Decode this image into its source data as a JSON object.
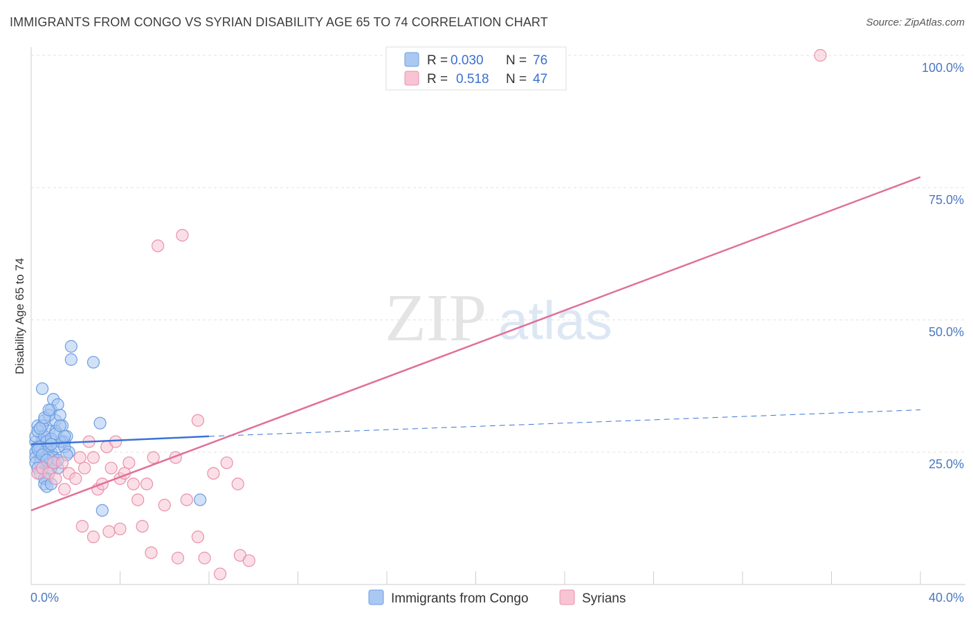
{
  "header": {
    "title": "IMMIGRANTS FROM CONGO VS SYRIAN DISABILITY AGE 65 TO 74 CORRELATION CHART",
    "source": "Source: ZipAtlas.com"
  },
  "watermark": {
    "zip": "ZIP",
    "atlas": "atlas"
  },
  "legend": {
    "r_label": "R =",
    "n_label": "N =",
    "rows": [
      {
        "r": "0.030",
        "n": "76",
        "fill": "#aac8f2",
        "stroke": "#6d9de0"
      },
      {
        "r": "0.518",
        "n": "47",
        "fill": "#f8c4d4",
        "stroke": "#e890ac"
      }
    ]
  },
  "chart_data": {
    "type": "scatter",
    "title": "IMMIGRANTS FROM CONGO VS SYRIAN DISABILITY AGE 65 TO 74 CORRELATION CHART",
    "xlabel": "",
    "ylabel": "Disability Age 65 to 74",
    "xlim": [
      0,
      40
    ],
    "ylim": [
      0,
      100
    ],
    "x_tick_labels": [
      "0.0%",
      "40.0%"
    ],
    "y_ticks": [
      {
        "value": 100,
        "label": "100.0%"
      },
      {
        "value": 75,
        "label": "75.0%"
      },
      {
        "value": 50,
        "label": "50.0%"
      },
      {
        "value": 25,
        "label": "25.0%"
      }
    ],
    "colors": {
      "congo": "#3a72d8",
      "syrians": "#e0709a",
      "tick": "#4a78c2"
    },
    "series": [
      {
        "name": "Immigrants from Congo",
        "fill": "#aac8f2",
        "stroke": "#6d9de0",
        "trend": {
          "x0": 0,
          "y0": 26.5,
          "x1": 8,
          "y1": 28,
          "dash_x1": 40,
          "dash_y1": 33
        },
        "points": [
          [
            0.2,
            27
          ],
          [
            0.3,
            26
          ],
          [
            0.2,
            25
          ],
          [
            0.4,
            24
          ],
          [
            0.5,
            28
          ],
          [
            0.3,
            30
          ],
          [
            0.6,
            31
          ],
          [
            0.5,
            27
          ],
          [
            0.4,
            25
          ],
          [
            0.2,
            24
          ],
          [
            0.7,
            26
          ],
          [
            0.8,
            29
          ],
          [
            0.6,
            23
          ],
          [
            0.9,
            33
          ],
          [
            1.0,
            35
          ],
          [
            1.1,
            31
          ],
          [
            1.2,
            34
          ],
          [
            1.3,
            32
          ],
          [
            1.4,
            30
          ],
          [
            1.5,
            27
          ],
          [
            1.6,
            28
          ],
          [
            1.7,
            25
          ],
          [
            1.0,
            24
          ],
          [
            0.9,
            22
          ],
          [
            0.8,
            21
          ],
          [
            0.7,
            20
          ],
          [
            0.6,
            19
          ],
          [
            0.5,
            22
          ],
          [
            0.4,
            23
          ],
          [
            0.3,
            26
          ],
          [
            0.2,
            28
          ],
          [
            0.3,
            29
          ],
          [
            0.5,
            30
          ],
          [
            0.6,
            28
          ],
          [
            0.7,
            27
          ],
          [
            0.8,
            26
          ],
          [
            0.9,
            25
          ],
          [
            1.0,
            24
          ],
          [
            1.1,
            23
          ],
          [
            1.2,
            22
          ],
          [
            0.5,
            37
          ],
          [
            0.8,
            32
          ],
          [
            1.1,
            29
          ],
          [
            1.4,
            27
          ],
          [
            0.4,
            26
          ],
          [
            0.6,
            25
          ],
          [
            0.8,
            24
          ],
          [
            1.0,
            23
          ],
          [
            1.2,
            26
          ],
          [
            1.3,
            27
          ],
          [
            0.2,
            23
          ],
          [
            0.3,
            22
          ],
          [
            0.4,
            21
          ],
          [
            0.6,
            20
          ],
          [
            0.7,
            18.5
          ],
          [
            0.9,
            19
          ],
          [
            1.2,
            23.5
          ],
          [
            1.5,
            26
          ],
          [
            1.6,
            24.5
          ],
          [
            0.3,
            25.5
          ],
          [
            0.5,
            24.5
          ],
          [
            0.7,
            23.5
          ],
          [
            0.9,
            27.5
          ],
          [
            1.1,
            28.5
          ],
          [
            0.4,
            29.5
          ],
          [
            0.6,
            31.5
          ],
          [
            0.8,
            33
          ],
          [
            1.3,
            30
          ],
          [
            1.8,
            45
          ],
          [
            1.8,
            42.5
          ],
          [
            2.8,
            42
          ],
          [
            3.1,
            30.5
          ],
          [
            3.2,
            14
          ],
          [
            7.6,
            16
          ],
          [
            1.5,
            28
          ],
          [
            0.9,
            26.5
          ]
        ]
      },
      {
        "name": "Syrians",
        "fill": "#f8c4d4",
        "stroke": "#e890ac",
        "trend": {
          "x0": 0,
          "y0": 14,
          "x1": 40,
          "y1": 77
        },
        "points": [
          [
            0.3,
            21
          ],
          [
            0.5,
            22
          ],
          [
            0.8,
            21
          ],
          [
            1.0,
            23
          ],
          [
            1.1,
            20
          ],
          [
            1.4,
            23
          ],
          [
            1.5,
            18
          ],
          [
            1.7,
            21
          ],
          [
            2.0,
            20
          ],
          [
            2.2,
            24
          ],
          [
            2.4,
            22
          ],
          [
            2.6,
            27
          ],
          [
            2.8,
            24
          ],
          [
            3.0,
            18
          ],
          [
            3.2,
            19
          ],
          [
            3.4,
            26
          ],
          [
            3.6,
            22
          ],
          [
            3.8,
            27
          ],
          [
            4.0,
            20
          ],
          [
            4.2,
            21
          ],
          [
            4.4,
            23
          ],
          [
            4.6,
            19
          ],
          [
            4.8,
            16
          ],
          [
            5.2,
            19
          ],
          [
            5.5,
            24
          ],
          [
            6.0,
            15
          ],
          [
            6.5,
            24
          ],
          [
            7.0,
            16
          ],
          [
            7.5,
            31
          ],
          [
            8.2,
            21
          ],
          [
            8.8,
            23
          ],
          [
            9.3,
            19
          ],
          [
            2.3,
            11
          ],
          [
            2.8,
            9
          ],
          [
            3.5,
            10
          ],
          [
            4.0,
            10.5
          ],
          [
            5.0,
            11
          ],
          [
            5.4,
            6
          ],
          [
            6.6,
            5
          ],
          [
            7.5,
            9
          ],
          [
            7.8,
            5
          ],
          [
            9.4,
            5.5
          ],
          [
            9.8,
            4.5
          ],
          [
            8.5,
            2
          ],
          [
            5.7,
            64
          ],
          [
            6.8,
            66
          ],
          [
            35.5,
            100
          ]
        ]
      }
    ]
  },
  "bottom_legend": {
    "items": [
      {
        "label": "Immigrants from Congo",
        "fill": "#aac8f2",
        "stroke": "#6d9de0"
      },
      {
        "label": "Syrians",
        "fill": "#f8c4d4",
        "stroke": "#e890ac"
      }
    ]
  }
}
